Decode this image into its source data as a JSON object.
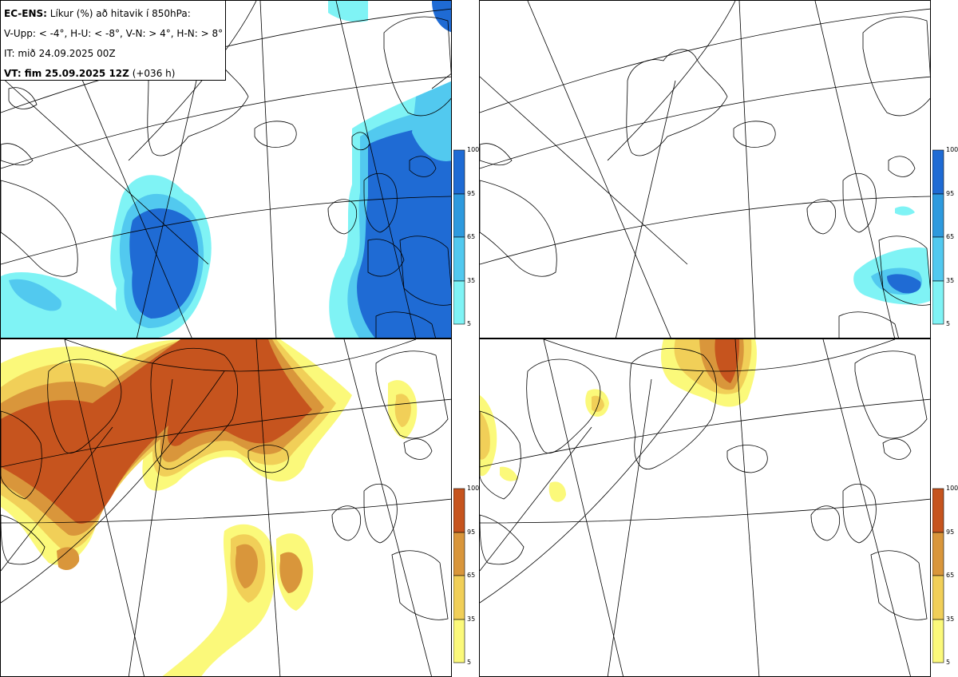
{
  "info": {
    "title_bold": "EC-ENS:",
    "title_rest": " Líkur (%) að hitavik í 850hPa:",
    "thresholds": "V-Upp: < -4°, H-U: < -8°, V-N: > 4°, H-N: > 8°",
    "init_time": "IT: mið 24.09.2025 00Z",
    "valid_bold": "VT: fim 25.09.2025 12Z",
    "valid_rest": " (+036 h)"
  },
  "colorbar_ticks": [
    "100",
    "95",
    "65",
    "35",
    "5"
  ],
  "colors": {
    "cold": [
      "#7ff3f5",
      "#52c9ef",
      "#2e9ade",
      "#1f6bd4"
    ],
    "warm": [
      "#fbf97a",
      "#f1cf58",
      "#d9963b",
      "#c6541e"
    ]
  },
  "panels": [
    {
      "id": "cold-4",
      "scheme": "cold"
    },
    {
      "id": "cold-8",
      "scheme": "cold"
    },
    {
      "id": "warm-4",
      "scheme": "warm"
    },
    {
      "id": "warm-8",
      "scheme": "warm"
    }
  ]
}
